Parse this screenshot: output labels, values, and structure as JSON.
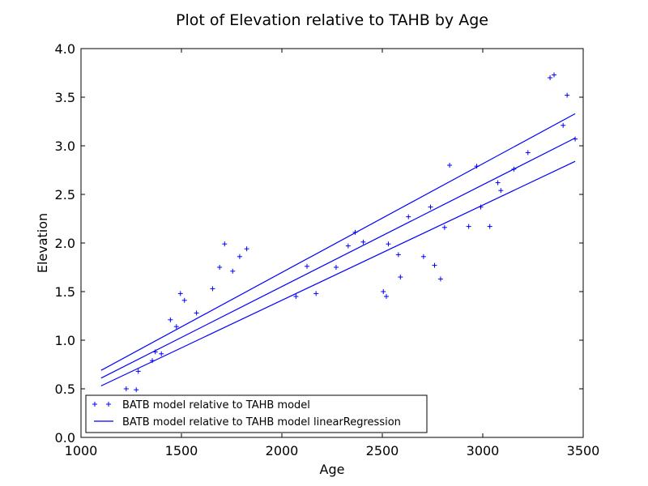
{
  "chart_data": {
    "type": "scatter",
    "title": "Plot of Elevation relative to TAHB by Age",
    "xlabel": "Age",
    "ylabel": "Elevation",
    "xlim": [
      1000,
      3500
    ],
    "ylim": [
      0.0,
      4.0
    ],
    "x_ticks": [
      1000,
      1500,
      2000,
      2500,
      3000,
      3500
    ],
    "y_ticks": [
      0.0,
      0.5,
      1.0,
      1.5,
      2.0,
      2.5,
      3.0,
      3.5,
      4.0
    ],
    "x_tick_labels": [
      "1000",
      "1500",
      "2000",
      "2500",
      "3000",
      "3500"
    ],
    "y_tick_labels": [
      "0.0",
      "0.5",
      "1.0",
      "1.5",
      "2.0",
      "2.5",
      "3.0",
      "3.5",
      "4.0"
    ],
    "grid": false,
    "legend_position": "lower-left",
    "color": "#0000ff",
    "series": [
      {
        "name": "BATB model relative to TAHB model",
        "kind": "scatter",
        "marker": "+",
        "points": [
          [
            1225,
            0.5
          ],
          [
            1275,
            0.49
          ],
          [
            1285,
            0.68
          ],
          [
            1355,
            0.79
          ],
          [
            1370,
            0.88
          ],
          [
            1400,
            0.86
          ],
          [
            1445,
            1.21
          ],
          [
            1475,
            1.14
          ],
          [
            1495,
            1.48
          ],
          [
            1515,
            1.41
          ],
          [
            1575,
            1.28
          ],
          [
            1655,
            1.53
          ],
          [
            1690,
            1.75
          ],
          [
            1715,
            1.99
          ],
          [
            1755,
            1.71
          ],
          [
            1790,
            1.86
          ],
          [
            1825,
            1.94
          ],
          [
            2070,
            1.45
          ],
          [
            2125,
            1.76
          ],
          [
            2170,
            1.48
          ],
          [
            2270,
            1.75
          ],
          [
            2330,
            1.97
          ],
          [
            2365,
            2.11
          ],
          [
            2405,
            2.01
          ],
          [
            2505,
            1.5
          ],
          [
            2520,
            1.45
          ],
          [
            2530,
            1.99
          ],
          [
            2580,
            1.88
          ],
          [
            2590,
            1.65
          ],
          [
            2630,
            2.27
          ],
          [
            2705,
            1.86
          ],
          [
            2740,
            2.37
          ],
          [
            2760,
            1.77
          ],
          [
            2790,
            1.63
          ],
          [
            2810,
            2.16
          ],
          [
            2835,
            2.8
          ],
          [
            2930,
            2.17
          ],
          [
            2970,
            2.79
          ],
          [
            2990,
            2.37
          ],
          [
            3035,
            2.17
          ],
          [
            3075,
            2.62
          ],
          [
            3090,
            2.54
          ],
          [
            3155,
            2.76
          ],
          [
            3225,
            2.93
          ],
          [
            3335,
            3.7
          ],
          [
            3355,
            3.73
          ],
          [
            3400,
            3.21
          ],
          [
            3420,
            3.52
          ],
          [
            3460,
            3.07
          ]
        ]
      },
      {
        "name": "BATB model relative to TAHB model linearRegression",
        "kind": "line",
        "lines": [
          [
            [
              1100,
              0.69
            ],
            [
              3460,
              3.33
            ]
          ],
          [
            [
              1100,
              0.61
            ],
            [
              3460,
              3.08
            ]
          ],
          [
            [
              1100,
              0.53
            ],
            [
              3460,
              2.84
            ]
          ]
        ]
      }
    ]
  }
}
